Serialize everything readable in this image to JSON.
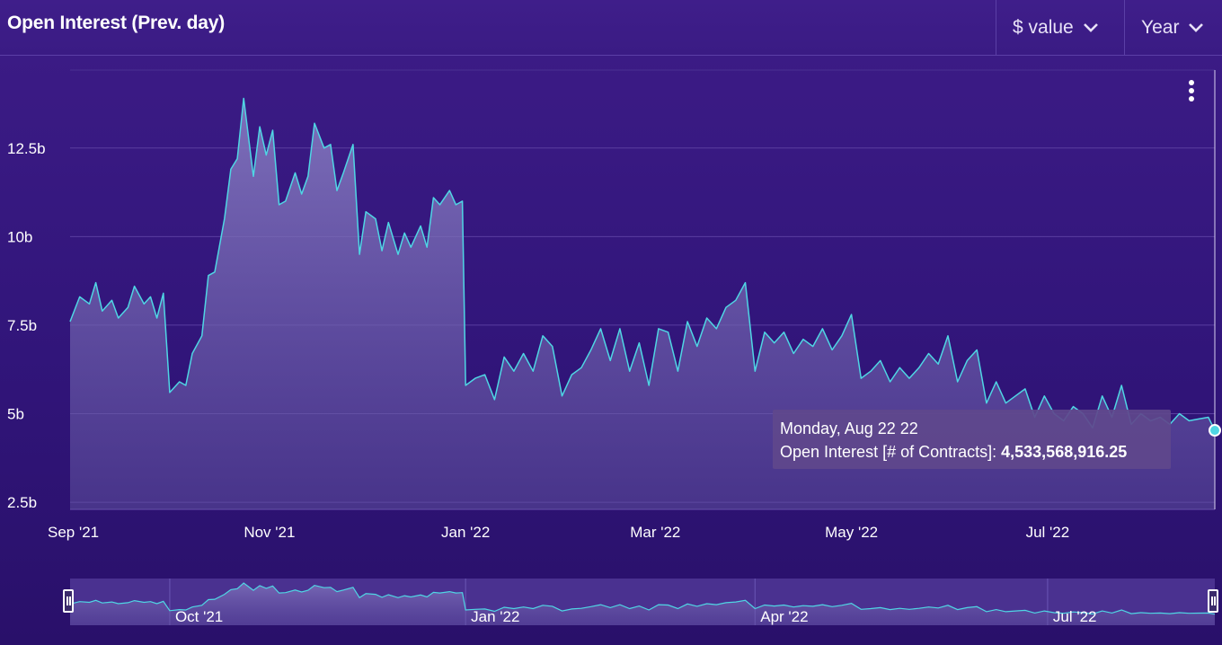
{
  "header": {
    "title": "Open Interest (Prev. day)",
    "value_selector_label": "$ value",
    "range_selector_label": "Year"
  },
  "tooltip": {
    "date": "Monday, Aug 22 22",
    "series_label": "Open Interest [# of Contracts]",
    "separator": ": ",
    "value": "4,533,568,916.25"
  },
  "colors": {
    "line": "#4fd6e4",
    "area_top": "#7b70b8",
    "background": "#3d1c87"
  },
  "chart_data": {
    "type": "area",
    "ylabel": "",
    "xlabel": "",
    "ylim": [
      2300000000,
      14700000000
    ],
    "xlim": [
      "2021-08-31",
      "2022-08-22"
    ],
    "y_ticks": [
      2500000000,
      5000000000,
      7500000000,
      10000000000,
      12500000000
    ],
    "y_tick_labels": [
      "2.5b",
      "5b",
      "7.5b",
      "10b",
      "12.5b"
    ],
    "x_ticks": [
      "2021-09-01",
      "2021-11-01",
      "2022-01-01",
      "2022-03-01",
      "2022-05-01",
      "2022-07-01"
    ],
    "x_tick_labels": [
      "Sep '21",
      "Nov '21",
      "Jan '22",
      "Mar '22",
      "May '22",
      "Jul '22"
    ],
    "grid": true,
    "series": [
      {
        "name": "Open Interest [# of Contracts]",
        "x": [
          "2021-08-31",
          "2021-09-03",
          "2021-09-06",
          "2021-09-08",
          "2021-09-10",
          "2021-09-13",
          "2021-09-15",
          "2021-09-18",
          "2021-09-20",
          "2021-09-23",
          "2021-09-25",
          "2021-09-27",
          "2021-09-29",
          "2021-10-01",
          "2021-10-04",
          "2021-10-06",
          "2021-10-08",
          "2021-10-11",
          "2021-10-13",
          "2021-10-15",
          "2021-10-18",
          "2021-10-20",
          "2021-10-22",
          "2021-10-24",
          "2021-10-27",
          "2021-10-29",
          "2021-10-31",
          "2021-11-02",
          "2021-11-04",
          "2021-11-06",
          "2021-11-09",
          "2021-11-11",
          "2021-11-13",
          "2021-11-15",
          "2021-11-18",
          "2021-11-20",
          "2021-11-22",
          "2021-11-24",
          "2021-11-27",
          "2021-11-29",
          "2021-12-01",
          "2021-12-04",
          "2021-12-06",
          "2021-12-08",
          "2021-12-11",
          "2021-12-13",
          "2021-12-15",
          "2021-12-18",
          "2021-12-20",
          "2021-12-22",
          "2021-12-24",
          "2021-12-27",
          "2021-12-29",
          "2021-12-31",
          "2022-01-01",
          "2022-01-04",
          "2022-01-07",
          "2022-01-10",
          "2022-01-13",
          "2022-01-16",
          "2022-01-19",
          "2022-01-22",
          "2022-01-25",
          "2022-01-28",
          "2022-01-31",
          "2022-02-03",
          "2022-02-06",
          "2022-02-09",
          "2022-02-12",
          "2022-02-15",
          "2022-02-18",
          "2022-02-21",
          "2022-02-24",
          "2022-02-27",
          "2022-03-02",
          "2022-03-05",
          "2022-03-08",
          "2022-03-11",
          "2022-03-14",
          "2022-03-17",
          "2022-03-20",
          "2022-03-23",
          "2022-03-26",
          "2022-03-29",
          "2022-04-01",
          "2022-04-04",
          "2022-04-07",
          "2022-04-10",
          "2022-04-13",
          "2022-04-16",
          "2022-04-19",
          "2022-04-22",
          "2022-04-25",
          "2022-04-28",
          "2022-05-01",
          "2022-05-04",
          "2022-05-07",
          "2022-05-10",
          "2022-05-13",
          "2022-05-16",
          "2022-05-19",
          "2022-05-22",
          "2022-05-25",
          "2022-05-28",
          "2022-05-31",
          "2022-06-03",
          "2022-06-06",
          "2022-06-09",
          "2022-06-12",
          "2022-06-15",
          "2022-06-18",
          "2022-06-21",
          "2022-06-24",
          "2022-06-27",
          "2022-06-30",
          "2022-07-03",
          "2022-07-06",
          "2022-07-09",
          "2022-07-12",
          "2022-07-15",
          "2022-07-18",
          "2022-07-21",
          "2022-07-24",
          "2022-07-27",
          "2022-07-30",
          "2022-08-02",
          "2022-08-05",
          "2022-08-08",
          "2022-08-11",
          "2022-08-14",
          "2022-08-17",
          "2022-08-20",
          "2022-08-22"
        ],
        "values": [
          7600000000,
          8300000000,
          8100000000,
          8700000000,
          7900000000,
          8200000000,
          7700000000,
          8000000000,
          8600000000,
          8100000000,
          8300000000,
          7700000000,
          8400000000,
          5600000000,
          5900000000,
          5800000000,
          6700000000,
          7200000000,
          8900000000,
          9000000000,
          10500000000,
          11900000000,
          12200000000,
          13900000000,
          11700000000,
          13100000000,
          12300000000,
          13000000000,
          10900000000,
          11000000000,
          11800000000,
          11200000000,
          11700000000,
          13200000000,
          12500000000,
          12600000000,
          11300000000,
          11800000000,
          12600000000,
          9500000000,
          10700000000,
          10500000000,
          9600000000,
          10400000000,
          9500000000,
          10100000000,
          9700000000,
          10300000000,
          9700000000,
          11100000000,
          10900000000,
          11300000000,
          10900000000,
          11000000000,
          5800000000,
          6000000000,
          6100000000,
          5400000000,
          6600000000,
          6200000000,
          6700000000,
          6200000000,
          7200000000,
          6900000000,
          5500000000,
          6100000000,
          6300000000,
          6800000000,
          7400000000,
          6500000000,
          7400000000,
          6200000000,
          7000000000,
          5800000000,
          7400000000,
          7300000000,
          6200000000,
          7600000000,
          6900000000,
          7700000000,
          7400000000,
          8000000000,
          8200000000,
          8700000000,
          6200000000,
          7300000000,
          7000000000,
          7300000000,
          6700000000,
          7100000000,
          6900000000,
          7400000000,
          6800000000,
          7200000000,
          7800000000,
          6000000000,
          6200000000,
          6500000000,
          5900000000,
          6300000000,
          6000000000,
          6300000000,
          6700000000,
          6400000000,
          7200000000,
          5900000000,
          6500000000,
          6800000000,
          5300000000,
          5900000000,
          5300000000,
          5500000000,
          5700000000,
          4900000000,
          5500000000,
          5000000000,
          4800000000,
          5200000000,
          5000000000,
          4600000000,
          5500000000,
          4900000000,
          5800000000,
          4700000000,
          5000000000,
          4800000000,
          4900000000,
          4700000000,
          5000000000,
          4800000000,
          4850000000,
          4900000000,
          4530000000
        ]
      }
    ]
  },
  "navigator": {
    "tick_labels": [
      "Oct '21",
      "Jan '22",
      "Apr '22",
      "Jul '22"
    ],
    "tick_dates": [
      "2021-10-01",
      "2022-01-01",
      "2022-04-01",
      "2022-07-01"
    ]
  }
}
